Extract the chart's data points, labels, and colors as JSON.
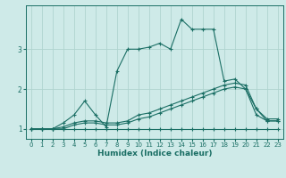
{
  "xlabel": "Humidex (Indice chaleur)",
  "bg_color": "#ceeae8",
  "grid_color": "#afd4d0",
  "line_color": "#1a6e64",
  "xlim": [
    -0.5,
    23.5
  ],
  "ylim": [
    0.75,
    4.1
  ],
  "yticks": [
    1,
    2,
    3
  ],
  "xticks": [
    0,
    1,
    2,
    3,
    4,
    5,
    6,
    7,
    8,
    9,
    10,
    11,
    12,
    13,
    14,
    15,
    16,
    17,
    18,
    19,
    20,
    21,
    22,
    23
  ],
  "lines": [
    {
      "x": [
        0,
        1,
        2,
        3,
        4,
        5,
        6,
        7,
        8,
        9,
        10,
        11,
        12,
        13,
        14,
        15,
        16,
        17,
        18,
        19,
        20,
        21,
        22,
        23
      ],
      "y": [
        1.0,
        1.0,
        1.0,
        1.0,
        1.0,
        1.0,
        1.0,
        1.0,
        1.0,
        1.0,
        1.0,
        1.0,
        1.0,
        1.0,
        1.0,
        1.0,
        1.0,
        1.0,
        1.0,
        1.0,
        1.0,
        1.0,
        1.0,
        1.0
      ]
    },
    {
      "x": [
        0,
        1,
        2,
        3,
        4,
        5,
        6,
        7,
        8,
        9,
        10,
        11,
        12,
        13,
        14,
        15,
        16,
        17,
        18,
        19,
        20,
        21,
        22,
        23
      ],
      "y": [
        1.0,
        1.0,
        1.0,
        1.0,
        1.1,
        1.15,
        1.15,
        1.1,
        1.1,
        1.15,
        1.25,
        1.3,
        1.4,
        1.5,
        1.6,
        1.7,
        1.8,
        1.9,
        2.0,
        2.05,
        2.0,
        1.35,
        1.2,
        1.2
      ]
    },
    {
      "x": [
        0,
        1,
        2,
        3,
        4,
        5,
        6,
        7,
        8,
        9,
        10,
        11,
        12,
        13,
        14,
        15,
        16,
        17,
        18,
        19,
        20,
        21,
        22,
        23
      ],
      "y": [
        1.0,
        1.0,
        1.0,
        1.05,
        1.15,
        1.2,
        1.2,
        1.15,
        1.15,
        1.2,
        1.35,
        1.4,
        1.5,
        1.6,
        1.7,
        1.8,
        1.9,
        2.0,
        2.1,
        2.15,
        2.1,
        1.5,
        1.25,
        1.25
      ]
    },
    {
      "x": [
        0,
        1,
        2,
        3,
        4,
        5,
        6,
        7,
        8,
        9,
        10,
        11,
        12,
        13,
        14,
        15,
        16,
        17,
        18,
        19,
        20,
        21,
        22,
        23
      ],
      "y": [
        1.0,
        1.0,
        1.0,
        1.15,
        1.35,
        1.7,
        1.35,
        1.05,
        2.45,
        3.0,
        3.0,
        3.05,
        3.15,
        3.0,
        3.75,
        3.5,
        3.5,
        3.5,
        2.2,
        2.25,
        2.0,
        1.5,
        1.2,
        1.2
      ]
    }
  ]
}
